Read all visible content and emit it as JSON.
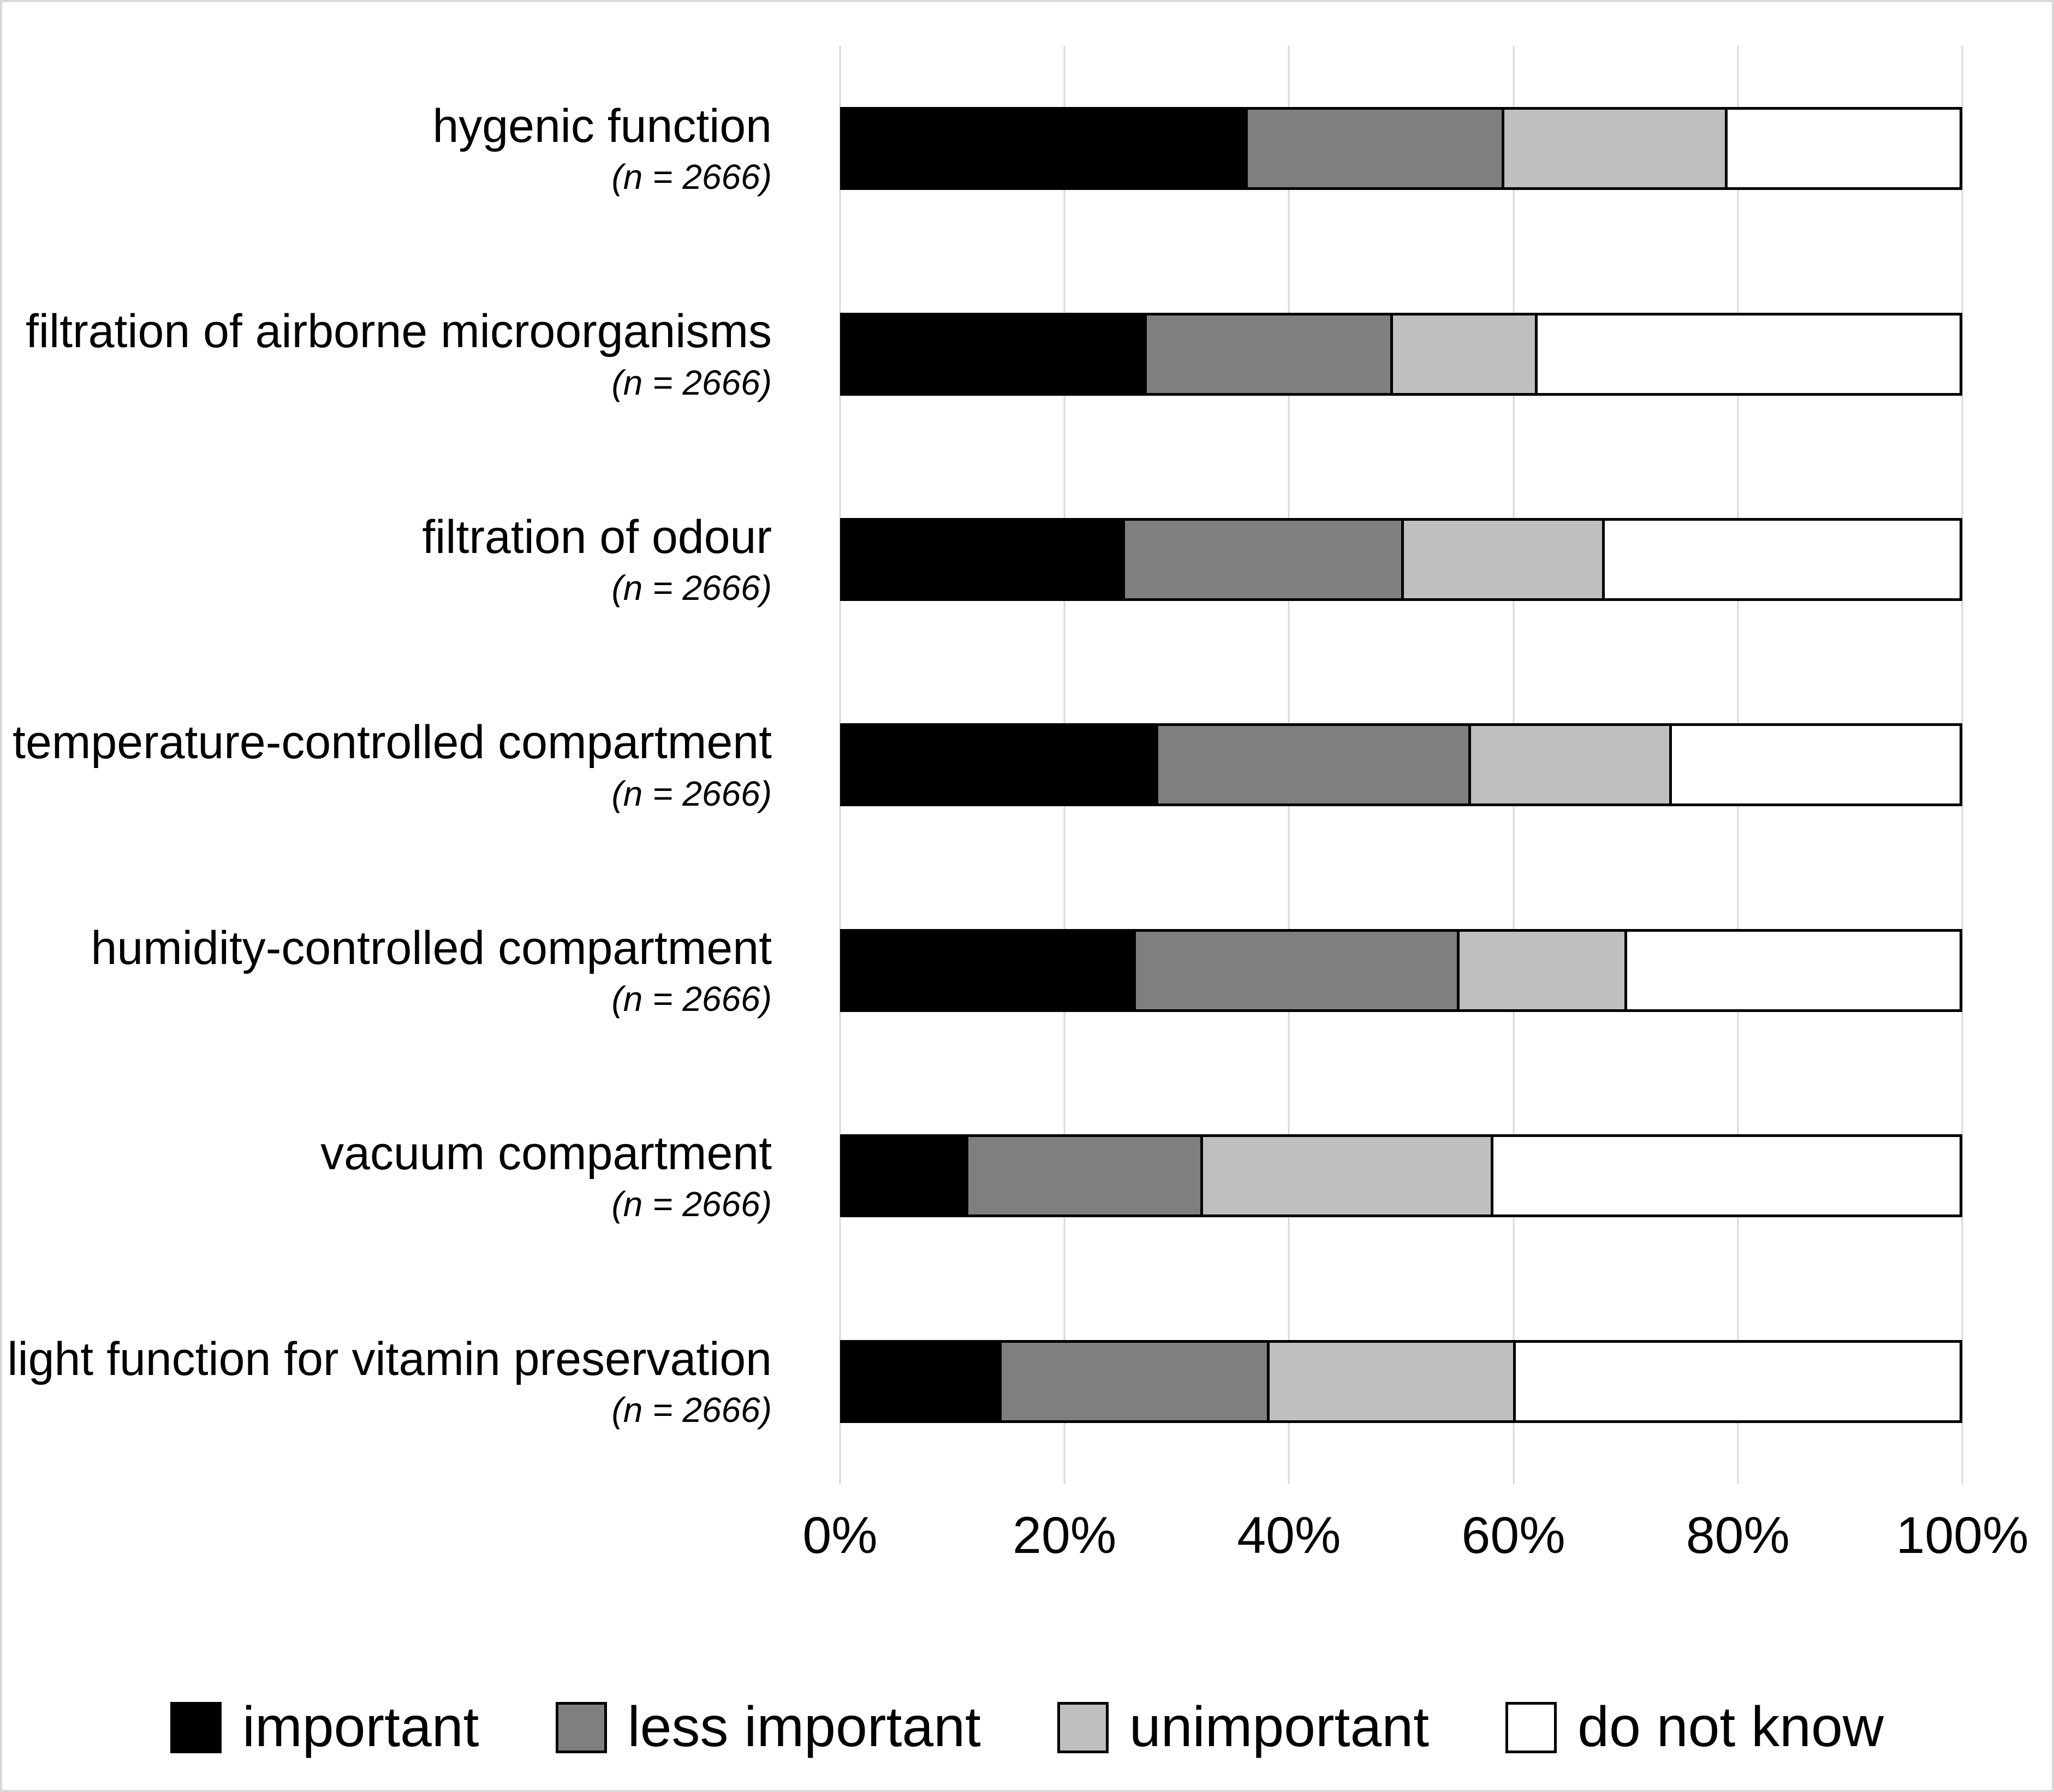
{
  "figure": {
    "background": "#ffffff",
    "frame_color": "#d9d9d9"
  },
  "chart_data": {
    "type": "bar",
    "orientation": "horizontal",
    "stacked": true,
    "units": "percent",
    "title": "",
    "xlabel": "",
    "ylabel": "",
    "xlim": [
      0,
      100
    ],
    "x_ticks": [
      "0%",
      "20%",
      "40%",
      "60%",
      "80%",
      "100%"
    ],
    "x_tick_positions": [
      0,
      20,
      40,
      60,
      80,
      100
    ],
    "grid": true,
    "gridline_color": "#d9d9d9",
    "bar_border_color": "#000000",
    "legend_position": "bottom",
    "categories": [
      {
        "label": "hygenic function",
        "n_label": "(n = 2666)"
      },
      {
        "label": "filtration of airborne microorganisms",
        "n_label": "(n = 2666)"
      },
      {
        "label": "filtration of odour",
        "n_label": "(n = 2666)"
      },
      {
        "label": "temperature-controlled compartment",
        "n_label": "(n = 2666)"
      },
      {
        "label": "humidity-controlled compartment",
        "n_label": "(n = 2666)"
      },
      {
        "label": "vacuum compartment",
        "n_label": "(n = 2666)"
      },
      {
        "label": "light function for vitamin preservation",
        "n_label": "(n = 2666)"
      }
    ],
    "series": [
      {
        "name": "important",
        "color": "#000000",
        "values": [
          36,
          27,
          25,
          28,
          26,
          11,
          14
        ]
      },
      {
        "name": "less important",
        "color": "#7f7f7f",
        "values": [
          23,
          22,
          25,
          28,
          29,
          21,
          24
        ]
      },
      {
        "name": "unimportant",
        "color": "#bfbfbf",
        "values": [
          20,
          13,
          18,
          18,
          15,
          26,
          22
        ]
      },
      {
        "name": "do not know",
        "color": "#ffffff",
        "values": [
          21,
          38,
          32,
          26,
          30,
          42,
          40
        ]
      }
    ]
  }
}
